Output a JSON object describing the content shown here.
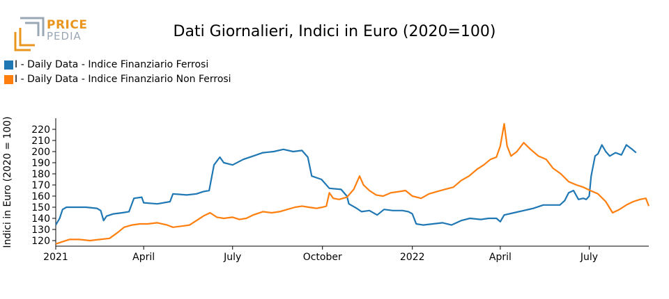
{
  "logo": {
    "line1": "PRICE",
    "line2": "PEDIA"
  },
  "colors": {
    "series1": "#1f77b4",
    "series2": "#ff7f0e",
    "logo_orange": "#e9961f",
    "logo_grey": "#9aa7b4"
  },
  "chart_data": {
    "type": "line",
    "title": "Dati Giornalieri, Indici in Euro (2020=100)",
    "ylabel": "Indici in Euro (2020 = 100)",
    "xlabel": "",
    "ylim": [
      115,
      230
    ],
    "xlim": [
      "2021-01-01",
      "2022-08-31"
    ],
    "yticks": [
      120,
      130,
      140,
      150,
      160,
      170,
      180,
      190,
      200,
      210,
      220
    ],
    "xticks": [
      {
        "date": "2021-01-01",
        "label": "2021"
      },
      {
        "date": "2021-04-01",
        "label": "April"
      },
      {
        "date": "2021-07-01",
        "label": "July"
      },
      {
        "date": "2021-10-01",
        "label": "October"
      },
      {
        "date": "2022-01-01",
        "label": "2022"
      },
      {
        "date": "2022-04-01",
        "label": "April"
      },
      {
        "date": "2022-07-01",
        "label": "July"
      }
    ],
    "legend": "top-left",
    "grid": false,
    "series": [
      {
        "name": "I - Daily Data - Indice Finanziario Ferrosi",
        "color": "#1f77b4",
        "points": [
          [
            "2021-01-01",
            134
          ],
          [
            "2021-01-05",
            140
          ],
          [
            "2021-01-08",
            148
          ],
          [
            "2021-01-12",
            150
          ],
          [
            "2021-01-20",
            150
          ],
          [
            "2021-02-01",
            150
          ],
          [
            "2021-02-12",
            149
          ],
          [
            "2021-02-16",
            147
          ],
          [
            "2021-02-19",
            138
          ],
          [
            "2021-02-22",
            142
          ],
          [
            "2021-03-01",
            144
          ],
          [
            "2021-03-10",
            145
          ],
          [
            "2021-03-17",
            146
          ],
          [
            "2021-03-22",
            158
          ],
          [
            "2021-03-30",
            159
          ],
          [
            "2021-04-01",
            154
          ],
          [
            "2021-04-15",
            153
          ],
          [
            "2021-04-28",
            155
          ],
          [
            "2021-05-01",
            162
          ],
          [
            "2021-05-15",
            161
          ],
          [
            "2021-05-25",
            162
          ],
          [
            "2021-06-01",
            164
          ],
          [
            "2021-06-07",
            165
          ],
          [
            "2021-06-12",
            188
          ],
          [
            "2021-06-18",
            195
          ],
          [
            "2021-06-22",
            190
          ],
          [
            "2021-07-01",
            188
          ],
          [
            "2021-07-12",
            193
          ],
          [
            "2021-07-22",
            196
          ],
          [
            "2021-08-01",
            199
          ],
          [
            "2021-08-12",
            200
          ],
          [
            "2021-08-22",
            202
          ],
          [
            "2021-09-01",
            200
          ],
          [
            "2021-09-10",
            201
          ],
          [
            "2021-09-16",
            195
          ],
          [
            "2021-09-20",
            178
          ],
          [
            "2021-09-30",
            175
          ],
          [
            "2021-10-08",
            167
          ],
          [
            "2021-10-20",
            166
          ],
          [
            "2021-10-26",
            160
          ],
          [
            "2021-10-28",
            153
          ],
          [
            "2021-11-05",
            149
          ],
          [
            "2021-11-10",
            146
          ],
          [
            "2021-11-18",
            147
          ],
          [
            "2021-11-26",
            143
          ],
          [
            "2021-12-03",
            148
          ],
          [
            "2021-12-12",
            147
          ],
          [
            "2021-12-22",
            147
          ],
          [
            "2021-12-28",
            146
          ],
          [
            "2022-01-01",
            144
          ],
          [
            "2022-01-05",
            135
          ],
          [
            "2022-01-12",
            134
          ],
          [
            "2022-01-22",
            135
          ],
          [
            "2022-02-01",
            136
          ],
          [
            "2022-02-10",
            134
          ],
          [
            "2022-02-20",
            138
          ],
          [
            "2022-03-01",
            140
          ],
          [
            "2022-03-12",
            139
          ],
          [
            "2022-03-20",
            140
          ],
          [
            "2022-03-28",
            140
          ],
          [
            "2022-04-01",
            137
          ],
          [
            "2022-04-05",
            143
          ],
          [
            "2022-04-15",
            145
          ],
          [
            "2022-04-25",
            147
          ],
          [
            "2022-05-05",
            149
          ],
          [
            "2022-05-15",
            152
          ],
          [
            "2022-05-25",
            152
          ],
          [
            "2022-06-01",
            152
          ],
          [
            "2022-06-06",
            156
          ],
          [
            "2022-06-10",
            163
          ],
          [
            "2022-06-15",
            165
          ],
          [
            "2022-06-20",
            157
          ],
          [
            "2022-06-25",
            158
          ],
          [
            "2022-06-28",
            157
          ],
          [
            "2022-07-01",
            160
          ],
          [
            "2022-07-03",
            178
          ],
          [
            "2022-07-07",
            196
          ],
          [
            "2022-07-10",
            198
          ],
          [
            "2022-07-14",
            206
          ],
          [
            "2022-07-18",
            200
          ],
          [
            "2022-07-22",
            196
          ],
          [
            "2022-07-28",
            199
          ],
          [
            "2022-08-03",
            197
          ],
          [
            "2022-08-08",
            206
          ],
          [
            "2022-08-14",
            202
          ],
          [
            "2022-08-18",
            199
          ]
        ]
      },
      {
        "name": "I - Daily Data - Indice Finanziario Non Ferrosi",
        "color": "#ff7f0e",
        "points": [
          [
            "2021-01-01",
            117
          ],
          [
            "2021-01-08",
            119
          ],
          [
            "2021-01-15",
            121
          ],
          [
            "2021-01-25",
            121
          ],
          [
            "2021-02-05",
            120
          ],
          [
            "2021-02-15",
            121
          ],
          [
            "2021-02-25",
            122
          ],
          [
            "2021-03-05",
            127
          ],
          [
            "2021-03-12",
            132
          ],
          [
            "2021-03-20",
            134
          ],
          [
            "2021-03-28",
            135
          ],
          [
            "2021-04-05",
            135
          ],
          [
            "2021-04-15",
            136
          ],
          [
            "2021-04-25",
            134
          ],
          [
            "2021-05-01",
            132
          ],
          [
            "2021-05-10",
            133
          ],
          [
            "2021-05-18",
            134
          ],
          [
            "2021-05-25",
            138
          ],
          [
            "2021-06-01",
            142
          ],
          [
            "2021-06-08",
            145
          ],
          [
            "2021-06-15",
            141
          ],
          [
            "2021-06-22",
            140
          ],
          [
            "2021-07-01",
            141
          ],
          [
            "2021-07-08",
            139
          ],
          [
            "2021-07-15",
            140
          ],
          [
            "2021-07-22",
            143
          ],
          [
            "2021-08-01",
            146
          ],
          [
            "2021-08-10",
            145
          ],
          [
            "2021-08-18",
            146
          ],
          [
            "2021-08-26",
            148
          ],
          [
            "2021-09-03",
            150
          ],
          [
            "2021-09-10",
            151
          ],
          [
            "2021-09-17",
            150
          ],
          [
            "2021-09-25",
            149
          ],
          [
            "2021-10-01",
            150
          ],
          [
            "2021-10-05",
            151
          ],
          [
            "2021-10-08",
            163
          ],
          [
            "2021-10-12",
            158
          ],
          [
            "2021-10-18",
            157
          ],
          [
            "2021-10-26",
            159
          ],
          [
            "2021-11-02",
            166
          ],
          [
            "2021-11-08",
            178
          ],
          [
            "2021-11-12",
            170
          ],
          [
            "2021-11-18",
            165
          ],
          [
            "2021-11-25",
            161
          ],
          [
            "2021-12-02",
            160
          ],
          [
            "2021-12-10",
            163
          ],
          [
            "2021-12-18",
            164
          ],
          [
            "2021-12-25",
            165
          ],
          [
            "2022-01-01",
            160
          ],
          [
            "2022-01-10",
            158
          ],
          [
            "2022-01-18",
            162
          ],
          [
            "2022-01-26",
            164
          ],
          [
            "2022-02-03",
            166
          ],
          [
            "2022-02-12",
            168
          ],
          [
            "2022-02-20",
            174
          ],
          [
            "2022-02-28",
            178
          ],
          [
            "2022-03-08",
            184
          ],
          [
            "2022-03-15",
            188
          ],
          [
            "2022-03-22",
            193
          ],
          [
            "2022-03-28",
            195
          ],
          [
            "2022-04-01",
            205
          ],
          [
            "2022-04-05",
            225
          ],
          [
            "2022-04-08",
            205
          ],
          [
            "2022-04-12",
            196
          ],
          [
            "2022-04-18",
            200
          ],
          [
            "2022-04-25",
            208
          ],
          [
            "2022-05-02",
            202
          ],
          [
            "2022-05-10",
            196
          ],
          [
            "2022-05-18",
            193
          ],
          [
            "2022-05-25",
            185
          ],
          [
            "2022-06-02",
            180
          ],
          [
            "2022-06-10",
            173
          ],
          [
            "2022-06-18",
            170
          ],
          [
            "2022-06-25",
            168
          ],
          [
            "2022-07-02",
            165
          ],
          [
            "2022-07-10",
            162
          ],
          [
            "2022-07-18",
            155
          ],
          [
            "2022-07-25",
            145
          ],
          [
            "2022-08-01",
            148
          ],
          [
            "2022-08-08",
            152
          ],
          [
            "2022-08-15",
            155
          ],
          [
            "2022-08-22",
            157
          ],
          [
            "2022-08-28",
            158
          ],
          [
            "2022-08-31",
            151
          ]
        ]
      }
    ]
  }
}
